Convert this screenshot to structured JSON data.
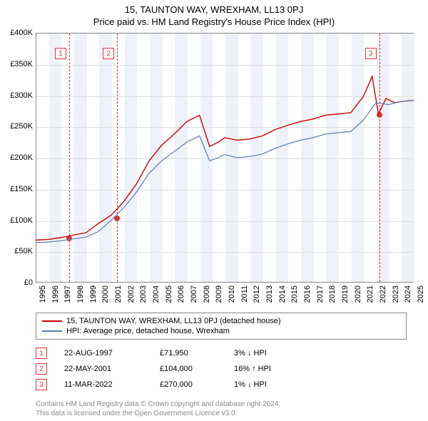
{
  "title_line1": "15, TAUNTON WAY, WREXHAM, LL13 0PJ",
  "title_line2": "Price paid vs. HM Land Registry's House Price Index (HPI)",
  "chart": {
    "type": "line",
    "ylim": [
      0,
      400000
    ],
    "ytick_step": 50000,
    "ytick_labels": [
      "£0",
      "£50K",
      "£100K",
      "£150K",
      "£200K",
      "£250K",
      "£300K",
      "£350K",
      "£400K"
    ],
    "x_years": [
      1995,
      1996,
      1997,
      1998,
      1999,
      2000,
      2001,
      2002,
      2003,
      2004,
      2005,
      2006,
      2007,
      2008,
      2009,
      2010,
      2011,
      2012,
      2013,
      2014,
      2015,
      2016,
      2017,
      2018,
      2019,
      2020,
      2021,
      2022,
      2023,
      2024,
      2025
    ],
    "xband_color": "#eef2f8",
    "grid_color": "#dddddd",
    "background_color": "#ffffff",
    "series": [
      {
        "name": "property",
        "color": "#cc0000",
        "width": 1.4,
        "points": [
          [
            1995,
            68000
          ],
          [
            1996,
            69000
          ],
          [
            1997,
            72000
          ],
          [
            1998,
            76000
          ],
          [
            1999,
            80000
          ],
          [
            2000,
            95000
          ],
          [
            2001,
            108000
          ],
          [
            2002,
            130000
          ],
          [
            2003,
            158000
          ],
          [
            2004,
            195000
          ],
          [
            2005,
            220000
          ],
          [
            2006,
            238000
          ],
          [
            2007,
            258000
          ],
          [
            2008,
            268000
          ],
          [
            2008.8,
            218000
          ],
          [
            2009.5,
            225000
          ],
          [
            2010,
            232000
          ],
          [
            2011,
            228000
          ],
          [
            2012,
            230000
          ],
          [
            2013,
            235000
          ],
          [
            2014,
            245000
          ],
          [
            2015,
            252000
          ],
          [
            2016,
            258000
          ],
          [
            2017,
            262000
          ],
          [
            2018,
            268000
          ],
          [
            2019,
            270000
          ],
          [
            2020,
            272000
          ],
          [
            2021,
            298000
          ],
          [
            2021.7,
            330000
          ],
          [
            2022.2,
            270000
          ],
          [
            2022.8,
            295000
          ],
          [
            2023.5,
            288000
          ],
          [
            2024,
            290000
          ],
          [
            2025,
            292000
          ]
        ]
      },
      {
        "name": "hpi",
        "color": "#5b7bb4",
        "width": 1.2,
        "points": [
          [
            1995,
            64000
          ],
          [
            1996,
            65000
          ],
          [
            1997,
            67000
          ],
          [
            1998,
            70000
          ],
          [
            1999,
            73000
          ],
          [
            2000,
            82000
          ],
          [
            2001,
            100000
          ],
          [
            2002,
            120000
          ],
          [
            2003,
            145000
          ],
          [
            2004,
            175000
          ],
          [
            2005,
            195000
          ],
          [
            2006,
            210000
          ],
          [
            2007,
            225000
          ],
          [
            2008,
            235000
          ],
          [
            2008.8,
            195000
          ],
          [
            2009.5,
            200000
          ],
          [
            2010,
            205000
          ],
          [
            2011,
            200000
          ],
          [
            2012,
            202000
          ],
          [
            2013,
            206000
          ],
          [
            2014,
            215000
          ],
          [
            2015,
            222000
          ],
          [
            2016,
            228000
          ],
          [
            2017,
            232000
          ],
          [
            2018,
            238000
          ],
          [
            2019,
            240000
          ],
          [
            2020,
            242000
          ],
          [
            2021,
            260000
          ],
          [
            2022,
            288000
          ],
          [
            2023,
            285000
          ],
          [
            2024,
            290000
          ],
          [
            2025,
            292000
          ]
        ]
      }
    ],
    "markers": [
      {
        "n": "1",
        "year": 1997.6,
        "value": 72000,
        "box_top": 20
      },
      {
        "n": "2",
        "year": 2001.4,
        "value": 104000,
        "box_top": 20
      },
      {
        "n": "3",
        "year": 2022.2,
        "value": 270000,
        "box_top": 20
      }
    ]
  },
  "legend": {
    "items": [
      {
        "color": "#cc0000",
        "label": "15, TAUNTON WAY, WREXHAM, LL13 0PJ (detached house)"
      },
      {
        "color": "#5b7bb4",
        "label": "HPI: Average price, detached house, Wrexham"
      }
    ]
  },
  "events": [
    {
      "n": "1",
      "date": "22-AUG-1997",
      "price": "£71,950",
      "diff": "3% ↓ HPI"
    },
    {
      "n": "2",
      "date": "22-MAY-2001",
      "price": "£104,000",
      "diff": "16% ↑ HPI"
    },
    {
      "n": "3",
      "date": "11-MAR-2022",
      "price": "£270,000",
      "diff": "1% ↓ HPI"
    }
  ],
  "footer_line1": "Contains HM Land Registry data © Crown copyright and database right 2024.",
  "footer_line2": "This data is licensed under the Open Government Licence v3.0."
}
